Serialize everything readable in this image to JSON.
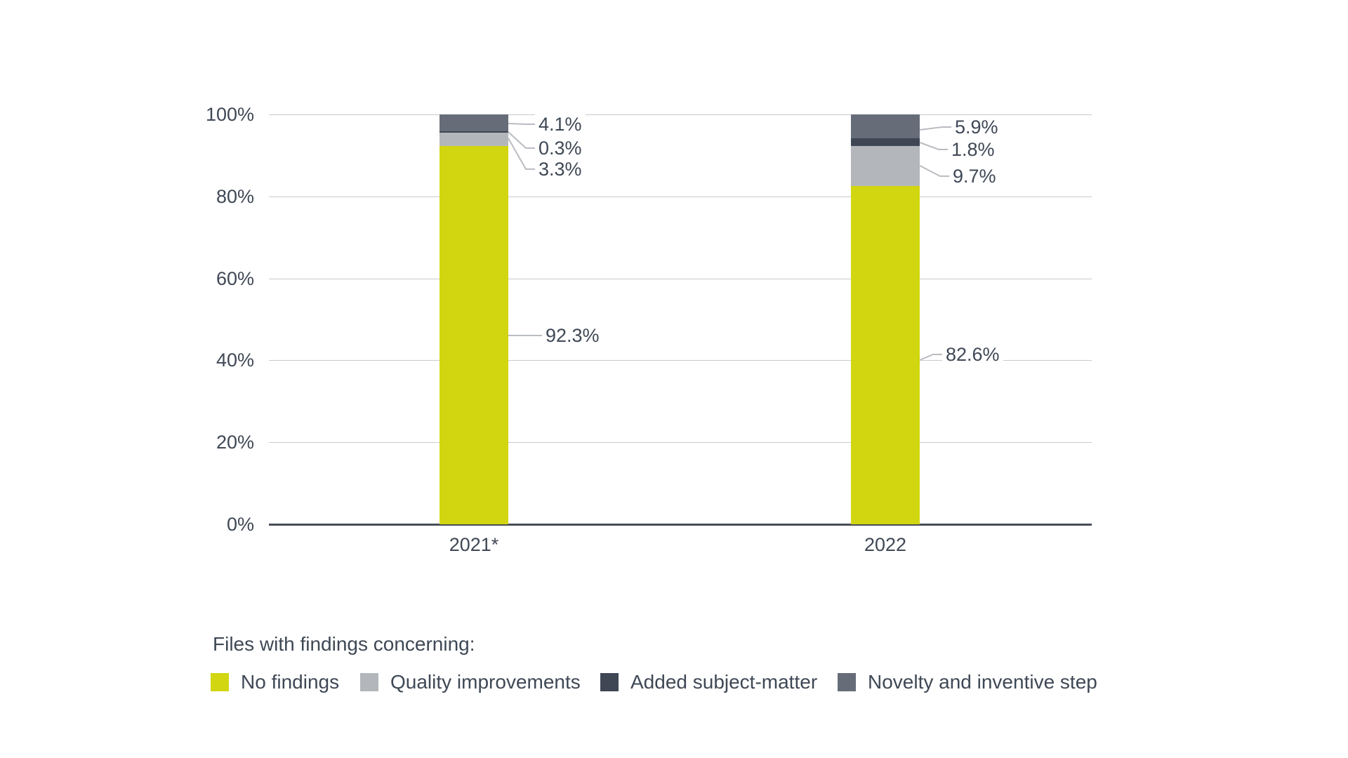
{
  "chart_data": {
    "type": "bar",
    "stacked": true,
    "categories": [
      "2021*",
      "2022"
    ],
    "series": [
      {
        "name": "No findings",
        "color": "#d2d611",
        "values": [
          92.3,
          82.6
        ],
        "labels": [
          "92.3%",
          "82.6%"
        ]
      },
      {
        "name": "Quality improvements",
        "color": "#b3b6bb",
        "values": [
          3.3,
          9.7
        ],
        "labels": [
          "3.3%",
          "9.7%"
        ]
      },
      {
        "name": "Added subject-matter",
        "color": "#3f4654",
        "values": [
          0.3,
          1.8
        ],
        "labels": [
          "0.3%",
          "1.8%"
        ]
      },
      {
        "name": "Novelty and inventive step",
        "color": "#666d78",
        "values": [
          4.1,
          5.9
        ],
        "labels": [
          "4.1%",
          "5.9%"
        ]
      }
    ],
    "y_ticks": [
      "0%",
      "20%",
      "40%",
      "60%",
      "80%",
      "100%"
    ],
    "y_tick_values": [
      0,
      20,
      40,
      60,
      80,
      100
    ],
    "ylim": [
      0,
      100
    ],
    "grid": true,
    "legend_position": "bottom",
    "legend_title": "Files with findings concerning:"
  },
  "palette": {
    "text_color": "#3f4855",
    "gridline_color": "#c9cacc",
    "axis_color": "#474d56",
    "leader_color": "#b9bcc1",
    "background": "#ffffff"
  }
}
